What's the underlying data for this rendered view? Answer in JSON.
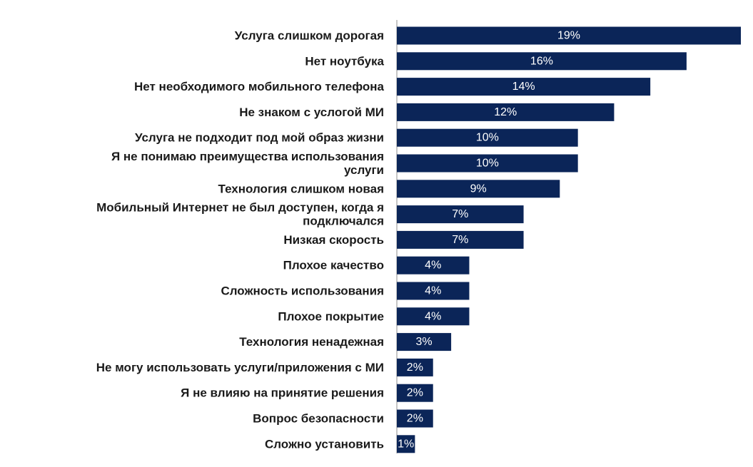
{
  "chart_data": {
    "type": "bar",
    "orientation": "horizontal",
    "title": "",
    "xlabel": "",
    "ylabel": "",
    "xlim": [
      0,
      19
    ],
    "grid": false,
    "legend": "none",
    "bar_color": "#0b2558",
    "value_label_color": "#ffffff",
    "categories": [
      [
        "Услуга слишком дорогая"
      ],
      [
        "Нет ноутбука"
      ],
      [
        "Нет необходимого мобильного телефона"
      ],
      [
        "Не знаком с услогой МИ"
      ],
      [
        "Услуга не подходит под мой образ жизни"
      ],
      [
        "Я не понимаю преимущества использования",
        "услуги"
      ],
      [
        "Технология слишком новая"
      ],
      [
        "Мобильный Интернет не был доступен, когда я",
        "подключался"
      ],
      [
        "Низкая скорость"
      ],
      [
        "Плохое качество"
      ],
      [
        "Сложность использования"
      ],
      [
        "Плохое покрытие"
      ],
      [
        "Технология ненадежная"
      ],
      [
        "Не могу использовать услуги/приложения с МИ"
      ],
      [
        "Я не влияю на принятие решения"
      ],
      [
        "Вопрос безопасности"
      ],
      [
        "Сложно установить"
      ]
    ],
    "values": [
      19,
      16,
      14,
      12,
      10,
      10,
      9,
      7,
      7,
      4,
      4,
      4,
      3,
      2,
      2,
      2,
      1
    ],
    "value_labels": [
      "19%",
      "16%",
      "14%",
      "12%",
      "10%",
      "10%",
      "9%",
      "7%",
      "7%",
      "4%",
      "4%",
      "4%",
      "3%",
      "2%",
      "2%",
      "2%",
      "1%"
    ]
  }
}
